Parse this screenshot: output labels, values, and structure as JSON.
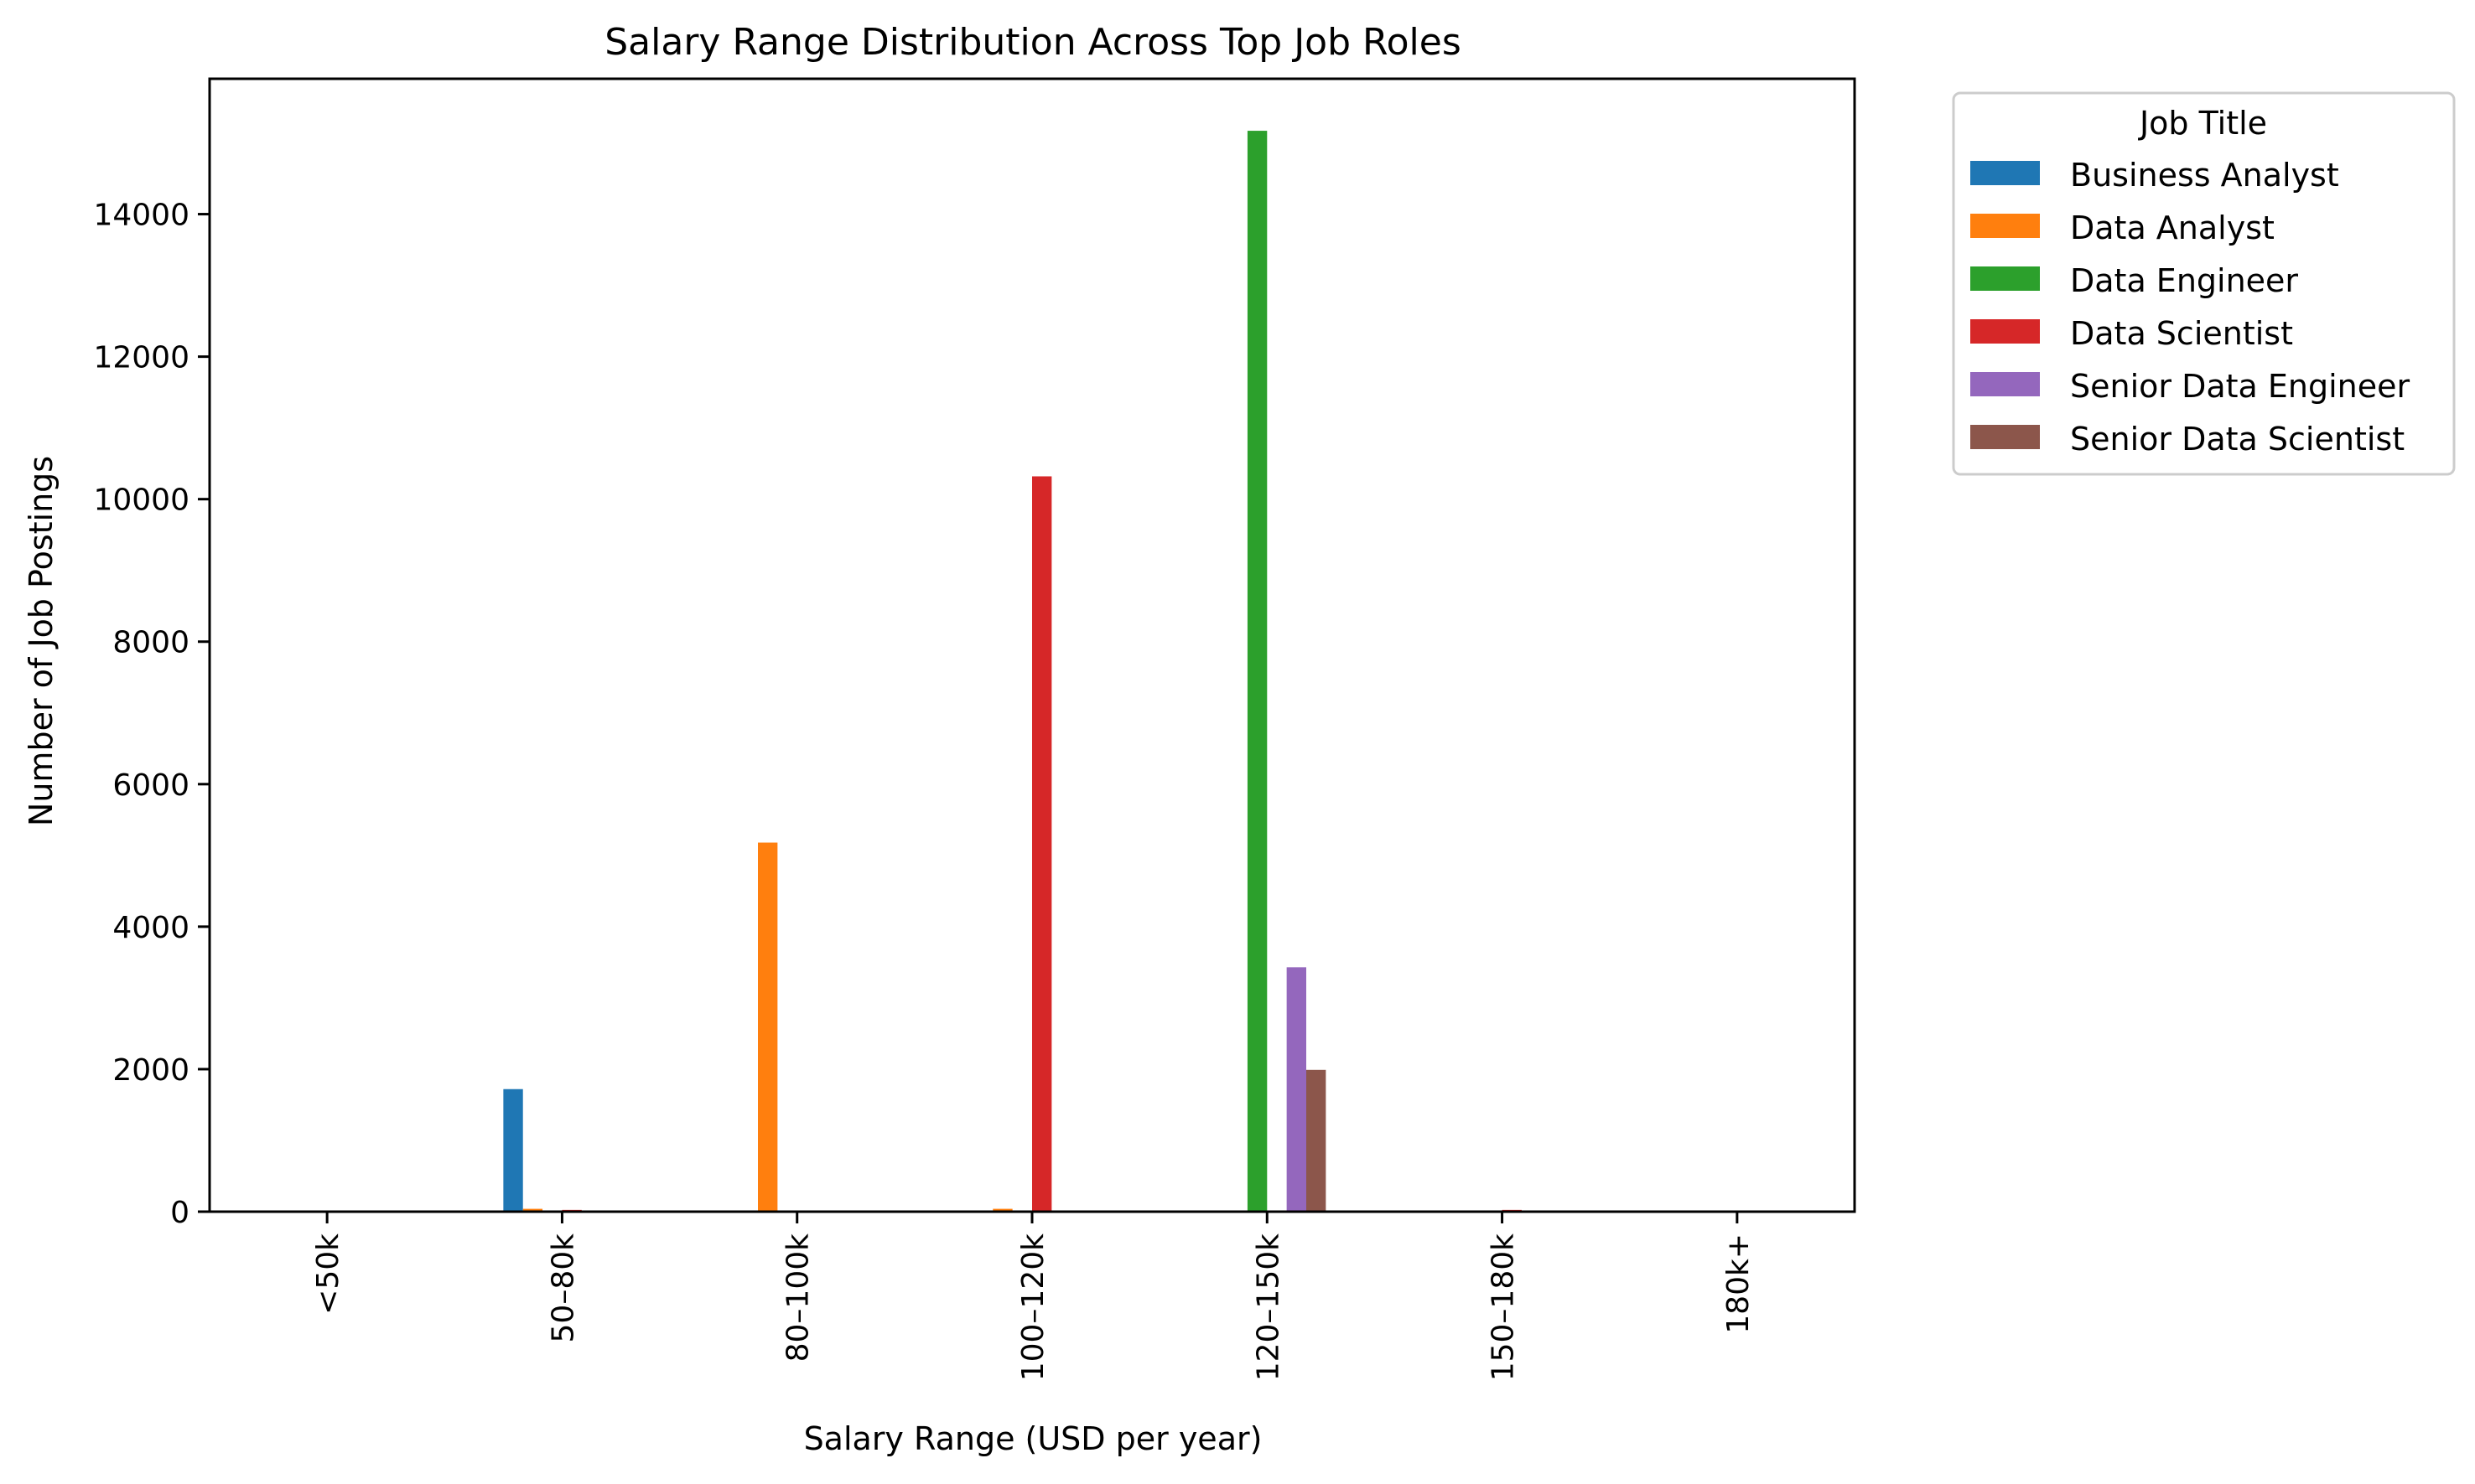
{
  "chart_data": {
    "type": "bar",
    "title": "Salary Range Distribution Across Top Job Roles",
    "xlabel": "Salary Range (USD per year)",
    "ylabel": "Number of Job Postings",
    "categories": [
      "<50k",
      "50–80k",
      "80–100k",
      "100–120k",
      "120–150k",
      "150–180k",
      "180k+"
    ],
    "ylim": [
      0,
      15900
    ],
    "yticks": [
      0,
      2000,
      4000,
      6000,
      8000,
      10000,
      12000,
      14000
    ],
    "grid": false,
    "legend": {
      "title": "Job Title",
      "placement": "outside-top-right"
    },
    "series": [
      {
        "name": "Business Analyst",
        "color": "#1f77b4",
        "values": [
          0,
          1720,
          0,
          0,
          0,
          0,
          0
        ]
      },
      {
        "name": "Data Analyst",
        "color": "#ff7f0e",
        "values": [
          0,
          40,
          5180,
          40,
          0,
          0,
          0
        ]
      },
      {
        "name": "Data Engineer",
        "color": "#2ca02c",
        "values": [
          0,
          0,
          0,
          0,
          15170,
          0,
          0
        ]
      },
      {
        "name": "Data Scientist",
        "color": "#d62728",
        "values": [
          0,
          25,
          0,
          10320,
          0,
          25,
          0
        ]
      },
      {
        "name": "Senior Data Engineer",
        "color": "#9467bd",
        "values": [
          0,
          0,
          0,
          0,
          3430,
          0,
          0
        ]
      },
      {
        "name": "Senior Data Scientist",
        "color": "#8c564b",
        "values": [
          0,
          0,
          0,
          0,
          1990,
          0,
          0
        ]
      }
    ]
  }
}
